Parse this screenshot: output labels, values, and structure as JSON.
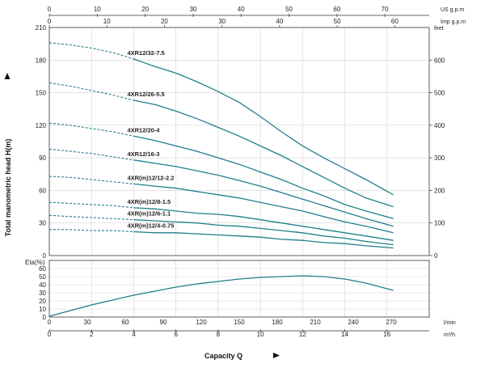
{
  "chart_data": [
    {
      "type": "line",
      "xlabel": "Capacity Q",
      "ylabel": "Total manometric head H(m)",
      "ylabel_right": "feet",
      "xlim": [
        0,
        18
      ],
      "ylim": [
        0,
        210
      ],
      "ylim_right": [
        0,
        700
      ],
      "grid": true,
      "x_unit_primary": "m³/h",
      "x_ticks_m3h": [
        0,
        2,
        4,
        6,
        8,
        10,
        12,
        14,
        16
      ],
      "x_unit_lmin": "l/min",
      "x_ticks_lmin": [
        0,
        30,
        60,
        90,
        120,
        150,
        180,
        210,
        240,
        270
      ],
      "x_unit_us": "US g.p.m",
      "x_ticks_us": [
        0,
        10,
        20,
        30,
        40,
        50,
        60,
        70
      ],
      "x_unit_imp": "Imp g.p.m",
      "x_ticks_imp": [
        0,
        10,
        20,
        30,
        40,
        50,
        60
      ],
      "y_ticks": [
        0,
        30,
        60,
        90,
        120,
        150,
        180,
        210
      ],
      "y_ticks_right": [
        0,
        100,
        200,
        300,
        400,
        500,
        600
      ],
      "curve_color": "#1f7f8c",
      "series": [
        {
          "name": "4XR12/32-7.5",
          "x": [
            0,
            1,
            2,
            3,
            4,
            5,
            6,
            7,
            8,
            9,
            10,
            11,
            12,
            13,
            14,
            15,
            16.3
          ],
          "values": [
            196,
            194,
            191,
            187,
            181,
            174,
            168,
            160,
            151,
            141,
            128,
            114,
            101,
            90,
            80,
            70,
            56
          ],
          "dashed_until": 4
        },
        {
          "name": "4XR12/26-5.5",
          "x": [
            0,
            1,
            2,
            3,
            4,
            5,
            6,
            7,
            8,
            9,
            10,
            11,
            12,
            13,
            14,
            15,
            16.3
          ],
          "values": [
            159,
            156,
            152,
            148,
            143,
            139,
            133,
            126,
            118,
            110,
            101,
            92,
            82,
            72,
            62,
            53,
            45
          ],
          "dashed_until": 4
        },
        {
          "name": "4XR12/20-4",
          "x": [
            0,
            1,
            2,
            3,
            4,
            5,
            6,
            7,
            8,
            9,
            10,
            11,
            12,
            13,
            14,
            15,
            16.3
          ],
          "values": [
            122,
            120,
            117,
            114,
            110,
            106,
            101,
            96,
            90,
            84,
            77,
            70,
            62,
            55,
            47,
            41,
            34
          ],
          "dashed_until": 4
        },
        {
          "name": "4XR12/16-3",
          "x": [
            0,
            1,
            2,
            3,
            4,
            5,
            6,
            7,
            8,
            9,
            10,
            11,
            12,
            13,
            14,
            15,
            16.3
          ],
          "values": [
            98,
            96,
            94,
            91,
            88,
            85,
            82,
            78,
            74,
            69,
            64,
            58,
            52,
            46,
            40,
            34,
            27
          ],
          "dashed_until": 4
        },
        {
          "name": "4XR(m)12/12-2.2",
          "x": [
            0,
            1,
            2,
            3,
            4,
            5,
            6,
            7,
            8,
            9,
            10,
            11,
            12,
            13,
            14,
            15,
            16.3
          ],
          "values": [
            73,
            72,
            70,
            68,
            66,
            64,
            62,
            59,
            56,
            53,
            49,
            45,
            41,
            36,
            31,
            27,
            21
          ],
          "dashed_until": 4
        },
        {
          "name": "4XR(m)12/8-1.5",
          "x": [
            0,
            1,
            2,
            3,
            4,
            5,
            6,
            7,
            8,
            9,
            10,
            11,
            12,
            13,
            14,
            15,
            16.3
          ],
          "values": [
            49,
            48,
            47,
            46,
            44,
            43,
            41,
            39,
            38,
            36,
            33,
            30,
            27,
            24,
            21,
            18,
            14
          ],
          "dashed_until": 4
        },
        {
          "name": "4XR(m)12/6-1.1",
          "x": [
            0,
            1,
            2,
            3,
            4,
            5,
            6,
            7,
            8,
            9,
            10,
            11,
            12,
            13,
            14,
            15,
            16.3
          ],
          "values": [
            37,
            36,
            35,
            34,
            33,
            32,
            31,
            30,
            28,
            27,
            25,
            23,
            21,
            18,
            16,
            13,
            10
          ],
          "dashed_until": 4
        },
        {
          "name": "4XR(m)12/4-0.75",
          "x": [
            0,
            1,
            2,
            3,
            4,
            5,
            6,
            7,
            8,
            9,
            10,
            11,
            12,
            13,
            14,
            15,
            16.3
          ],
          "values": [
            24,
            24,
            23,
            23,
            22,
            21,
            21,
            20,
            19,
            18,
            17,
            15,
            14,
            12,
            11,
            9,
            7
          ],
          "dashed_until": 4
        }
      ]
    },
    {
      "type": "line",
      "ylabel": "Eta(%)",
      "xlim": [
        0,
        18
      ],
      "ylim": [
        0,
        70
      ],
      "y_ticks": [
        0,
        10,
        20,
        30,
        40,
        50,
        60
      ],
      "grid": true,
      "series": [
        {
          "x": [
            0,
            1,
            2,
            3,
            4,
            5,
            6,
            7,
            8,
            9,
            10,
            11,
            12,
            13,
            14,
            15,
            16.3
          ],
          "values": [
            1,
            8,
            15,
            21,
            27,
            32,
            37,
            41,
            44,
            47,
            49,
            50,
            51,
            50,
            47,
            42,
            33
          ]
        }
      ]
    }
  ]
}
